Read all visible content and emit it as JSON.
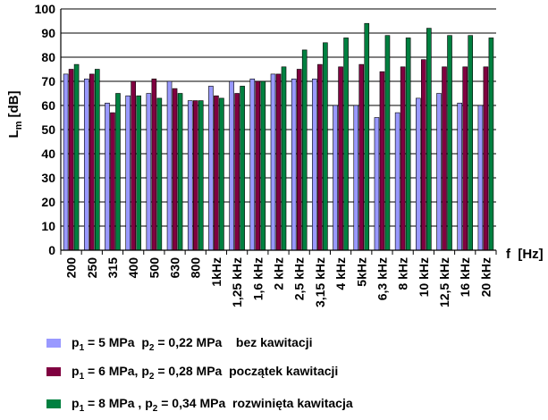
{
  "chart_data": {
    "type": "bar",
    "ylabel": {
      "main": "L",
      "sub": "m",
      "unit": "[dB]"
    },
    "xlabel": "f  [Hz]",
    "ylim": [
      0,
      100
    ],
    "yticks": [
      0,
      10,
      20,
      30,
      40,
      50,
      60,
      70,
      80,
      90,
      100
    ],
    "grid": "horizontal",
    "categories": [
      "200",
      "250",
      "315",
      "400",
      "500",
      "630",
      "800",
      "1kHz",
      "1,25 kHz",
      "1,6 kHz",
      "2 kHz",
      "2,5 kHz",
      "3,15 kHz",
      "4 kHz",
      "5kHz",
      "6,3 kHz",
      "8 kHz",
      "10 kHz",
      "12,5 kHz",
      "16 kHz",
      "20 kHz"
    ],
    "series": [
      {
        "legend": {
          "p1": "= 5 MPa",
          "p2": "= 0,22 MPa",
          "desc": "bez kawitacji"
        },
        "color": "#9999ff",
        "values": [
          73,
          71,
          61,
          64,
          65,
          70,
          62,
          68,
          70,
          71,
          73,
          71,
          71,
          60,
          60,
          55,
          57,
          63,
          65,
          61,
          60
        ]
      },
      {
        "legend": {
          "p1": "= 6 MPa,",
          "p2": "= 0,28 MPa",
          "desc": "początek kawitacji"
        },
        "color": "#800040",
        "values": [
          75,
          73,
          57,
          70,
          71,
          67,
          62,
          64,
          65,
          70,
          73,
          75,
          77,
          76,
          77,
          74,
          76,
          79,
          76,
          76,
          76
        ]
      },
      {
        "legend": {
          "p1": "= 8 MPa ,",
          "p2": "= 0,34 MPa",
          "desc": "rozwinięta kawitacja"
        },
        "color": "#008040",
        "values": [
          77,
          75,
          65,
          64,
          63,
          65,
          62,
          63,
          68,
          70,
          76,
          83,
          86,
          88,
          94,
          89,
          88,
          92,
          89,
          89,
          88
        ]
      }
    ]
  }
}
